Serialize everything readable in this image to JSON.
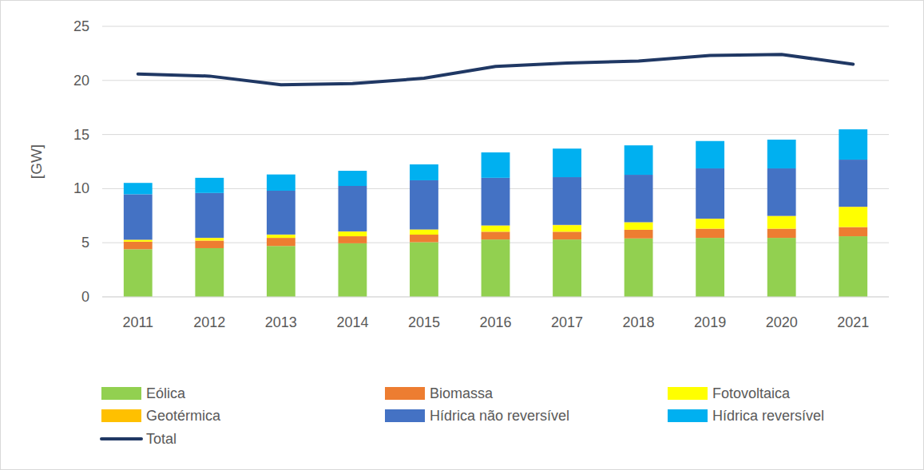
{
  "chart_data": {
    "type": "bar",
    "stacked": true,
    "grid": true,
    "legend": "bottom",
    "y_label": "[GW]",
    "categories": [
      "2011",
      "2012",
      "2013",
      "2014",
      "2015",
      "2016",
      "2017",
      "2018",
      "2019",
      "2020",
      "2021"
    ],
    "ylim": [
      0,
      25
    ],
    "yticks": [
      0,
      5,
      10,
      15,
      20,
      25
    ],
    "series": [
      {
        "name": "Eólica",
        "color": "#92d050",
        "values": [
          4.4,
          4.5,
          4.7,
          4.95,
          5.05,
          5.3,
          5.3,
          5.4,
          5.45,
          5.45,
          5.6
        ]
      },
      {
        "name": "Biomassa",
        "color": "#ed7d31",
        "values": [
          0.7,
          0.7,
          0.75,
          0.65,
          0.7,
          0.72,
          0.72,
          0.8,
          0.85,
          0.85,
          0.85
        ]
      },
      {
        "name": "Fotovoltaica",
        "color": "#ffff00",
        "values": [
          0.15,
          0.23,
          0.28,
          0.42,
          0.45,
          0.55,
          0.6,
          0.67,
          0.9,
          1.15,
          1.85
        ]
      },
      {
        "name": "Geotérmica",
        "color": "#ffc000",
        "values": [
          0.03,
          0.03,
          0.03,
          0.03,
          0.03,
          0.03,
          0.03,
          0.03,
          0.03,
          0.03,
          0.03
        ]
      },
      {
        "name": "Hídrica não reversível",
        "color": "#4472c4",
        "values": [
          4.2,
          4.14,
          4.05,
          4.2,
          4.54,
          4.4,
          4.41,
          4.38,
          4.64,
          4.39,
          4.35
        ]
      },
      {
        "name": "Hídrica reversível",
        "color": "#00b0f0",
        "values": [
          1.05,
          1.4,
          1.5,
          1.4,
          1.47,
          2.35,
          2.64,
          2.72,
          2.53,
          2.66,
          2.8
        ]
      },
      {
        "name": "Total",
        "color": "#203864",
        "type": "line",
        "values": [
          20.6,
          20.4,
          19.6,
          19.7,
          20.2,
          21.3,
          21.6,
          21.8,
          22.3,
          22.4,
          21.5
        ]
      }
    ]
  }
}
